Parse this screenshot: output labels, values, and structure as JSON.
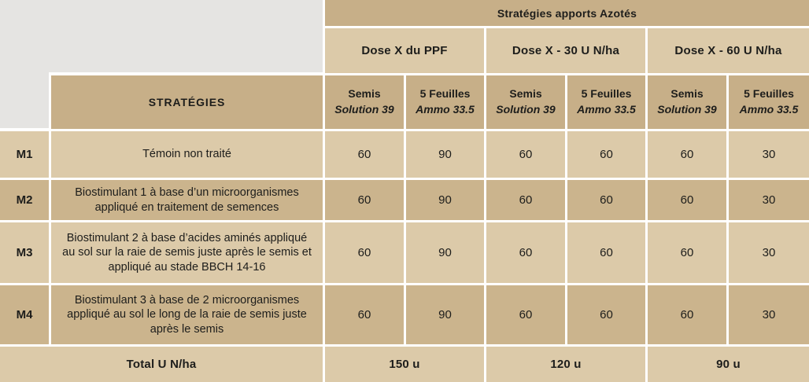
{
  "colors": {
    "header_dark": "#c7af88",
    "row_light": "#dccaa9",
    "row_mid": "#cbb48d",
    "page_gray": "#e5e4e2",
    "text": "#1d1d1b",
    "gap": "#ffffff"
  },
  "table": {
    "top_header": "Stratégies apports Azotés",
    "dose_headers": [
      "Dose X du PPF",
      "Dose X - 30 U N/ha",
      "Dose X - 60 U N/ha"
    ],
    "strategies_header": "STRATÉGIES",
    "timing_headers": [
      {
        "stage": "Semis",
        "product": "Solution 39"
      },
      {
        "stage": "5 Feuilles",
        "product": "Ammo 33.5"
      },
      {
        "stage": "Semis",
        "product": "Solution 39"
      },
      {
        "stage": "5 Feuilles",
        "product": "Ammo 33.5"
      },
      {
        "stage": "Semis",
        "product": "Solution 39"
      },
      {
        "stage": "5 Feuilles",
        "product": "Ammo 33.5"
      }
    ],
    "rows": [
      {
        "code": "M1",
        "description": "Témoin non traité",
        "values": [
          "60",
          "90",
          "60",
          "60",
          "60",
          "30"
        ]
      },
      {
        "code": "M2",
        "description": "Biostimulant 1 à base d’un microorganismes\nappliqué en traitement de semences",
        "values": [
          "60",
          "90",
          "60",
          "60",
          "60",
          "30"
        ]
      },
      {
        "code": "M3",
        "description": "Biostimulant 2 à base d’acides aminés appliqué\nau sol sur la raie de semis juste après le semis et\nappliqué au stade BBCH 14-16",
        "values": [
          "60",
          "90",
          "60",
          "60",
          "60",
          "30"
        ]
      },
      {
        "code": "M4",
        "description": "Biostimulant 3 à base de 2 microorganismes\nappliqué au sol le long de la raie de semis juste\naprès le semis",
        "values": [
          "60",
          "90",
          "60",
          "60",
          "60",
          "30"
        ]
      }
    ],
    "total_row": {
      "label": "Total U N/ha",
      "totals": [
        "150 u",
        "120 u",
        "90 u"
      ]
    }
  }
}
